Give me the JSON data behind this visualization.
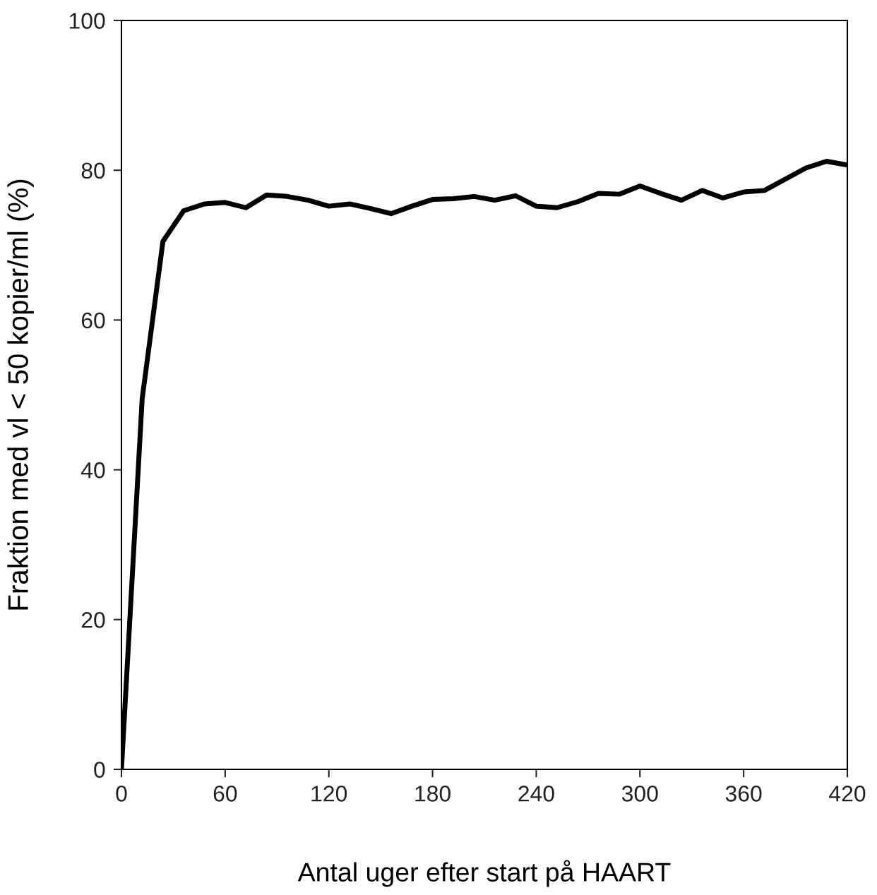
{
  "chart_data": {
    "type": "line",
    "xlabel": "Antal uger efter start på HAART",
    "ylabel": "Fraktion med vl < 50 kopier/ml (%)",
    "x": [
      0,
      12,
      24,
      36,
      48,
      60,
      72,
      84,
      96,
      108,
      120,
      132,
      144,
      156,
      168,
      180,
      192,
      204,
      216,
      228,
      240,
      252,
      264,
      276,
      288,
      300,
      312,
      324,
      336,
      348,
      360,
      372,
      384,
      396,
      408,
      420
    ],
    "series": [
      {
        "color": "#000000",
        "values": [
          0,
          49.5,
          70.5,
          74.6,
          75.5,
          75.7,
          75.0,
          76.7,
          76.5,
          76.0,
          75.2,
          75.5,
          74.9,
          74.2,
          75.2,
          76.1,
          76.2,
          76.5,
          76.0,
          76.6,
          75.2,
          75.0,
          75.8,
          76.9,
          76.8,
          77.9,
          76.9,
          76.0,
          77.3,
          76.3,
          77.1,
          77.3,
          78.8,
          80.3,
          81.2,
          80.7
        ]
      }
    ],
    "xlim": [
      0,
      420
    ],
    "xticks": [
      0,
      60,
      120,
      180,
      240,
      300,
      360,
      420
    ],
    "ylim": [
      0,
      100
    ],
    "yticks": [
      0,
      20,
      40,
      60,
      80,
      100
    ],
    "grid": false,
    "legend": false,
    "marker": "none",
    "line_style": "solid"
  }
}
